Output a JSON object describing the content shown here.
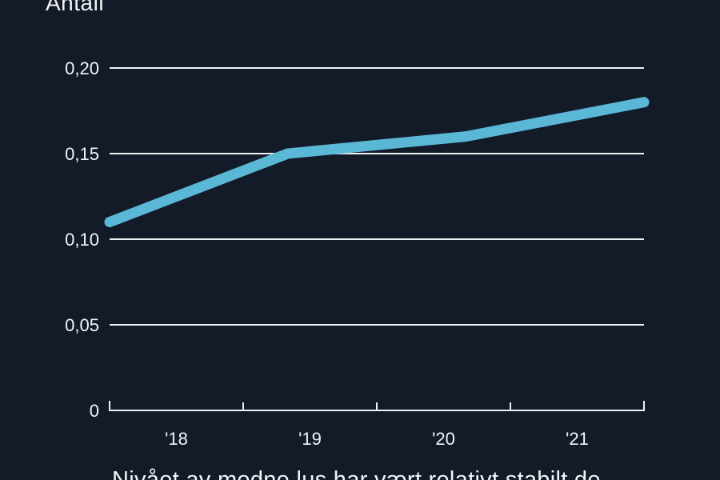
{
  "chart_data": {
    "type": "line",
    "title": "Antall",
    "caption": "Nivået av modne lus har vært relativt stabilt de",
    "categories": [
      "'18",
      "'19",
      "'20",
      "'21"
    ],
    "values": [
      0.11,
      0.15,
      0.16,
      0.18
    ],
    "series": [
      {
        "name": "",
        "values": [
          0.11,
          0.15,
          0.16,
          0.18
        ]
      }
    ],
    "xlabel": "",
    "ylabel": "Antall",
    "ylim": [
      0,
      0.2
    ],
    "yticks": [
      0,
      0.05,
      0.1,
      0.15,
      0.2
    ],
    "ytick_labels": [
      "0",
      "0,05",
      "0,10",
      "0,15",
      "0,20"
    ],
    "xtick_labels": [
      "'18",
      "'19",
      "'20",
      "'21"
    ],
    "grid": true,
    "legend": "none",
    "decimal_separator": ",",
    "colors": {
      "background": "#141b28",
      "line": "#5ab7d6",
      "grid": "#eef1f4",
      "axis": "#eef1f4",
      "text": "#f2f5f7"
    }
  }
}
